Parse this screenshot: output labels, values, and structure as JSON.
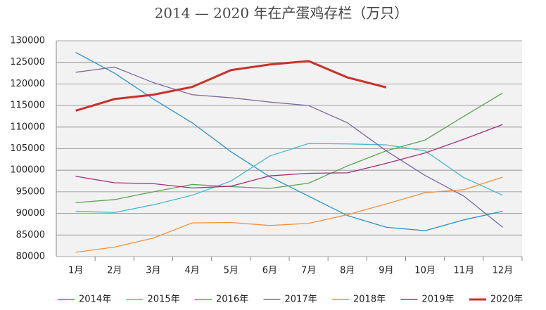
{
  "chart_data": {
    "type": "line",
    "title": "2014 — 2020 年在产蛋鸡存栏（万只）",
    "categories": [
      "1月",
      "2月",
      "3月",
      "4月",
      "5月",
      "6月",
      "7月",
      "8月",
      "9月",
      "10月",
      "11月",
      "12月"
    ],
    "ylim": [
      80000,
      130000
    ],
    "yticks": [
      80000,
      85000,
      90000,
      95000,
      100000,
      105000,
      110000,
      115000,
      120000,
      125000,
      130000
    ],
    "grid": true,
    "legend": "bottom",
    "series": [
      {
        "name": "2014年",
        "color": "#2a93c9",
        "values": [
          127300,
          122500,
          116500,
          111000,
          104300,
          98500,
          94000,
          89500,
          86800,
          86000,
          88500,
          90500
        ]
      },
      {
        "name": "2015年",
        "color": "#48b8cc",
        "values": [
          90500,
          90200,
          92000,
          94200,
          97500,
          103300,
          106200,
          106100,
          105900,
          104500,
          98300,
          94200
        ]
      },
      {
        "name": "2016年",
        "color": "#5aa552",
        "values": [
          92500,
          93200,
          95000,
          96700,
          96200,
          95800,
          97000,
          101000,
          104500,
          107000,
          112500,
          117900
        ]
      },
      {
        "name": "2017年",
        "color": "#7b6a9e",
        "values": [
          122700,
          123900,
          120300,
          117500,
          116800,
          115800,
          115000,
          111000,
          104500,
          98800,
          94000,
          86800
        ]
      },
      {
        "name": "2018年",
        "color": "#f0913f",
        "values": [
          81000,
          82200,
          84300,
          87800,
          87900,
          87200,
          87700,
          89700,
          92200,
          94800,
          95500,
          98400
        ]
      },
      {
        "name": "2019年",
        "color": "#a3307c",
        "values": [
          98600,
          97100,
          96900,
          95900,
          96300,
          98700,
          99300,
          99400,
          101600,
          104000,
          107200,
          110600
        ]
      },
      {
        "name": "2020年",
        "color": "#c8332b",
        "values": [
          113800,
          116500,
          117500,
          119300,
          123200,
          124500,
          125300,
          121500,
          119200,
          null,
          null,
          null
        ]
      }
    ]
  }
}
